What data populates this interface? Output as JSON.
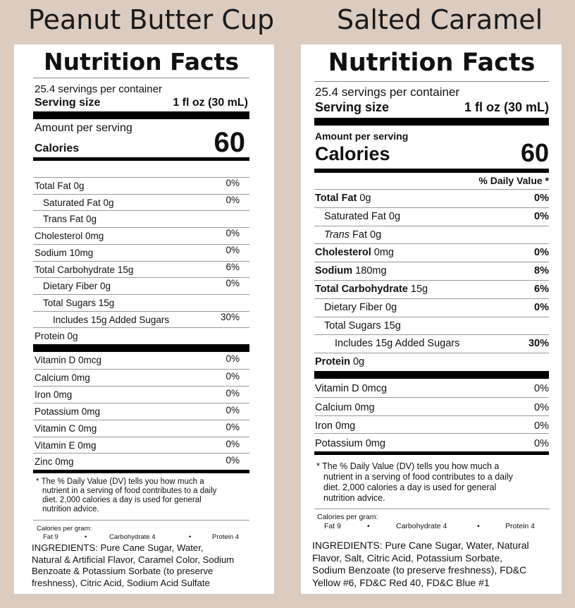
{
  "left": {
    "title": "Peanut Butter Cup",
    "header": "Nutrition Facts",
    "servings": "25.4 servings per container",
    "serving_size_label": "Serving size",
    "serving_size_value": "1 fl oz (30 mL)",
    "amount_label": "Amount per serving",
    "calories_label": "Calories",
    "calories_value": "60",
    "nutrients": [
      {
        "name": "Total  Fat 0g",
        "dv": "0%"
      },
      {
        "name": "Saturated Fat 0g",
        "dv": "0%"
      },
      {
        "name": "Trans Fat 0g",
        "dv": ""
      },
      {
        "name": "Cholesterol   0mg",
        "dv": "0%"
      },
      {
        "name": "Sodium  10mg",
        "dv": "0%"
      },
      {
        "name": "Total Carbohydrate    15g",
        "dv": "6%"
      },
      {
        "name": "Dietary Fiber 0g",
        "dv": "0%"
      },
      {
        "name": "Total Sugars 15g",
        "dv": ""
      },
      {
        "name": "Includes 15g Added Sugars",
        "dv": "30%"
      },
      {
        "name": "Protein  0g",
        "dv": ""
      }
    ],
    "vitamins": [
      {
        "name": "Vitamin D 0mcg",
        "dv": "0%"
      },
      {
        "name": "Calcium 0mg",
        "dv": "0%"
      },
      {
        "name": "Iron 0mg",
        "dv": "0%"
      },
      {
        "name": "Potassium 0mg",
        "dv": "0%"
      },
      {
        "name": "Vitamin C 0mg",
        "dv": "0%"
      },
      {
        "name": "Vitamin E 0mg",
        "dv": "0%"
      },
      {
        "name": "Zinc 0mg",
        "dv": "0%"
      }
    ],
    "footnote_1": "*  The % Daily Value (DV) tells you how much a",
    "footnote_2": "nutrient in a serving of food contributes to a daily",
    "footnote_3": "diet. 2,000 calories a day is used for general",
    "footnote_4": "nutrition advice.",
    "cal_per_gram": "Calories per gram:",
    "fat": "Fat 9",
    "carb": "Carbohydrate 4",
    "protein": "Protein 4",
    "bullet": "•",
    "ingredients_1": "INGREDIENTS: Pure Cane Sugar, Water,",
    "ingredients_2": "Natural & Artificial Flavor, Caramel Color, Sodium",
    "ingredients_3": "Benzoate & Potassium Sorbate (to preserve",
    "ingredients_4": "freshness), Citric Acid, Sodium Acid Sulfate"
  },
  "right": {
    "title": "Salted Caramel",
    "header": "Nutrition Facts",
    "servings": "25.4 servings per container",
    "serving_size_label": "Serving size",
    "serving_size_value": "1 fl oz (30 mL)",
    "amount_label": "Amount per serving",
    "calories_label": "Calories",
    "calories_value": "60",
    "dv_header": "% Daily Value *",
    "nutrients": [
      {
        "bold": "Total Fat",
        "rest": " 0g",
        "dv": "0%"
      },
      {
        "bold": "",
        "rest": "Saturated Fat 0g",
        "dv": "0%"
      },
      {
        "italic": "Trans",
        "rest": " Fat 0g",
        "dv": ""
      },
      {
        "bold": "Cholesterol",
        "rest": " 0mg",
        "dv": "0%"
      },
      {
        "bold": "Sodium",
        "rest": " 180mg",
        "dv": "8%"
      },
      {
        "bold": "Total Carbohydrate",
        "rest": " 15g",
        "dv": "6%"
      },
      {
        "bold": "",
        "rest": "Dietary Fiber 0g",
        "dv": "0%"
      },
      {
        "bold": "",
        "rest": "Total Sugars 15g",
        "dv": ""
      },
      {
        "bold": "",
        "rest": "Includes 15g Added Sugars",
        "dv": "30%"
      },
      {
        "bold": "Protein",
        "rest": " 0g",
        "dv": ""
      }
    ],
    "vitamins": [
      {
        "name": "Vitamin D 0mcg",
        "dv": "0%"
      },
      {
        "name": "Calcium 0mg",
        "dv": "0%"
      },
      {
        "name": "Iron 0mg",
        "dv": "0%"
      },
      {
        "name": "Potassium 0mg",
        "dv": "0%"
      }
    ],
    "footnote_1": "*  The % Daily Value (DV) tells you how much a",
    "footnote_2": "nutrient in a serving of food contributes to a daily",
    "footnote_3": "diet. 2,000 calories a day is used for general",
    "footnote_4": "nutrition advice.",
    "cal_per_gram": "Calories per gram:",
    "fat": "Fat 9",
    "carb": "Carbohydrate 4",
    "protein": "Protein 4",
    "bullet": "•",
    "ingredients_1": "INGREDIENTS: Pure Cane Sugar, Water, Natural",
    "ingredients_2": "Flavor, Salt, Citric Acid, Potassium Sorbate,",
    "ingredients_3": "Sodium Benzoate (to preserve freshness), FD&C",
    "ingredients_4": "Yellow #6, FD&C Red 40, FD&C Blue #1"
  }
}
